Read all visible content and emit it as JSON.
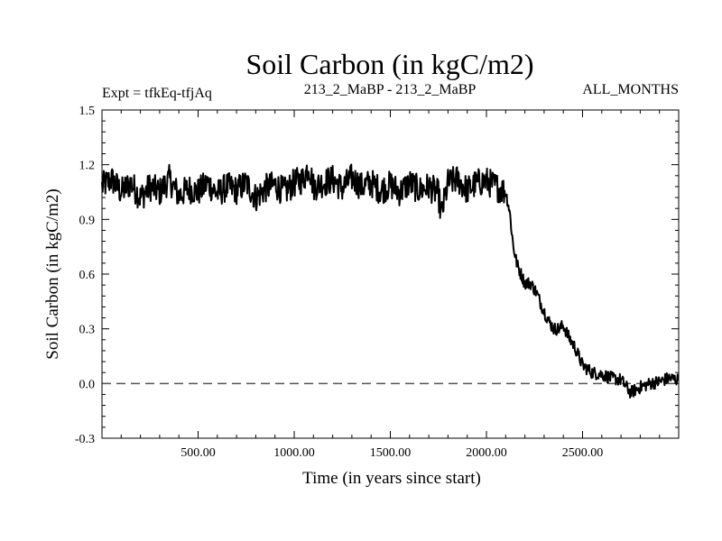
{
  "colors": {
    "line": "#000000",
    "zero_line": "#555555",
    "background": "#ffffff"
  },
  "chart_data": {
    "type": "line",
    "title": "Soil Carbon (in kgC/m2)",
    "subtitle_left": "Expt = tfkEq-tfjAq",
    "subtitle_center": "213_2_MaBP - 213_2_MaBP",
    "subtitle_right": "ALL_MONTHS",
    "xlabel": "Time (in years since start)",
    "ylabel": "Soil Carbon (in kgC/m2)",
    "xlim": [
      0,
      3000
    ],
    "ylim": [
      -0.3,
      1.5
    ],
    "x_ticks": [
      500,
      1000,
      1500,
      2000,
      2500
    ],
    "x_tick_labels": [
      "500.00",
      "1000.00",
      "1500.00",
      "2000.00",
      "2500.00"
    ],
    "y_ticks": [
      -0.3,
      0.0,
      0.3,
      0.6,
      0.9,
      1.2,
      1.5
    ],
    "y_tick_labels": [
      "-0.3",
      "0.0",
      "0.3",
      "0.6",
      "0.9",
      "1.2",
      "1.5"
    ],
    "reference_line": {
      "y": 0.0,
      "style": "dashed"
    },
    "grid": false,
    "series": [
      {
        "x": [
          0,
          50,
          100,
          150,
          200,
          250,
          300,
          350,
          400,
          450,
          500,
          550,
          600,
          650,
          700,
          750,
          800,
          850,
          900,
          950,
          1000,
          1050,
          1075,
          1100,
          1150,
          1200,
          1250,
          1300,
          1350,
          1400,
          1450,
          1500,
          1550,
          1600,
          1650,
          1700,
          1750,
          1765,
          1800,
          1850,
          1900,
          1950,
          2000,
          2050,
          2100,
          2120,
          2140,
          2160,
          2180,
          2200,
          2230,
          2260,
          2290,
          2320,
          2350,
          2380,
          2400,
          2430,
          2460,
          2500,
          2550,
          2600,
          2650,
          2700,
          2750,
          2800,
          2850,
          2900,
          2950,
          3000
        ],
        "values": [
          1.08,
          1.12,
          1.05,
          1.1,
          1.02,
          1.08,
          1.05,
          1.12,
          1.03,
          1.07,
          1.05,
          1.1,
          1.04,
          1.08,
          1.06,
          1.1,
          1.02,
          1.07,
          1.09,
          1.05,
          1.1,
          1.12,
          1.2,
          1.08,
          1.1,
          1.12,
          1.07,
          1.13,
          1.08,
          1.1,
          1.06,
          1.09,
          1.05,
          1.1,
          1.06,
          1.08,
          1.04,
          0.92,
          1.1,
          1.12,
          1.06,
          1.1,
          1.11,
          1.08,
          1.05,
          0.95,
          0.75,
          0.65,
          0.6,
          0.55,
          0.55,
          0.5,
          0.42,
          0.35,
          0.3,
          0.3,
          0.32,
          0.25,
          0.2,
          0.1,
          0.06,
          0.05,
          0.03,
          0.02,
          -0.05,
          -0.02,
          0.0,
          0.01,
          0.03,
          0.02
        ]
      }
    ]
  }
}
